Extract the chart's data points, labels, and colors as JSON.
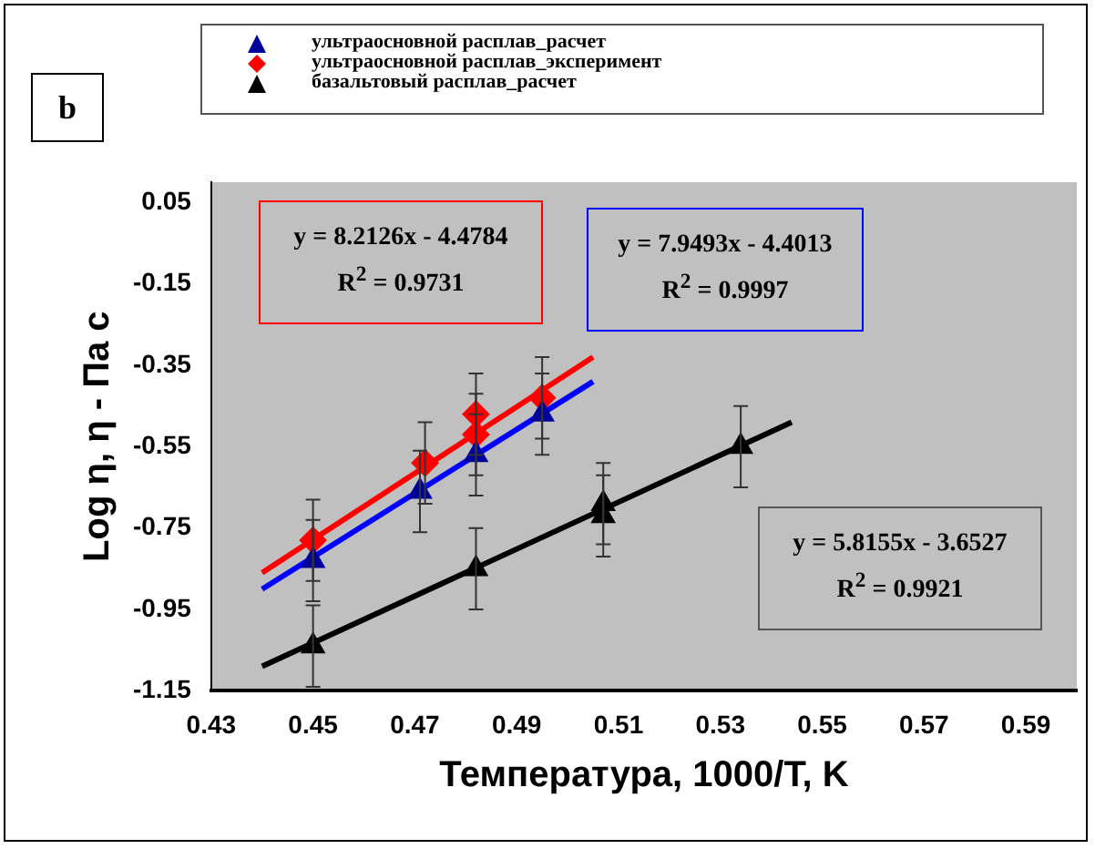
{
  "chart_data": {
    "type": "scatter",
    "xlabel": "Температура, 1000/T, K",
    "ylabel": "Log η, η - Па с",
    "xlim": [
      0.43,
      0.6
    ],
    "xticks": [
      0.43,
      0.45,
      0.47,
      0.49,
      0.51,
      0.53,
      0.55,
      0.57,
      0.59
    ],
    "ylim": [
      -1.15,
      0.1
    ],
    "yticks": [
      0.05,
      -0.15,
      -0.35,
      -0.55,
      -0.75,
      -0.95,
      -1.15
    ],
    "grid": false,
    "legend": "top",
    "annotations": [
      "b",
      "y = 8.2126x - 4.4784",
      "R$^{2}$ = 0.9731",
      "y = 7.9493x - 4.4013",
      "R$^{2}$ = 0.9997",
      "y = 5.8155x - 3.6527",
      "R$^{2}$ = 0.9921"
    ],
    "series": [
      {
        "type": "line",
        "color": "#0000ff",
        "marker": "none",
        "x": [
          0.44,
          0.505
        ],
        "values": [
          -0.9,
          -0.39
        ]
      },
      {
        "type": "line",
        "color": "#ff0000",
        "marker": "none",
        "x": [
          0.44,
          0.505
        ],
        "values": [
          -0.86,
          -0.33
        ]
      },
      {
        "type": "line",
        "color": "#000000",
        "marker": "none",
        "x": [
          0.44,
          0.544
        ],
        "values": [
          -1.09,
          -0.49
        ]
      },
      {
        "name": "ультраосновной расплав_расчет",
        "color": "#00009a",
        "marker": "triangle",
        "x": [
          0.45,
          0.471,
          0.482,
          0.495
        ],
        "values": [
          -0.83,
          -0.66,
          -0.57,
          -0.47
        ],
        "errors": [
          0.1,
          0.1,
          0.1,
          0.1
        ]
      },
      {
        "name": "ультраосновной расплав_эксперимент",
        "color": "#ff0000",
        "marker": "diamond",
        "x": [
          0.45,
          0.472,
          0.482,
          0.482,
          0.495
        ],
        "values": [
          -0.78,
          -0.59,
          -0.52,
          -0.47,
          -0.43
        ],
        "errors": [
          0.1,
          0.1,
          0.1,
          0.1,
          0.1
        ]
      },
      {
        "name": "базальтовый расплав_расчет",
        "color": "#000000",
        "marker": "triangle",
        "x": [
          0.45,
          0.482,
          0.507,
          0.507,
          0.534
        ],
        "values": [
          -1.04,
          -0.85,
          -0.69,
          -0.72,
          -0.55
        ],
        "errors": [
          0.1,
          0.1,
          0.1,
          0.1,
          0.1
        ]
      }
    ]
  }
}
